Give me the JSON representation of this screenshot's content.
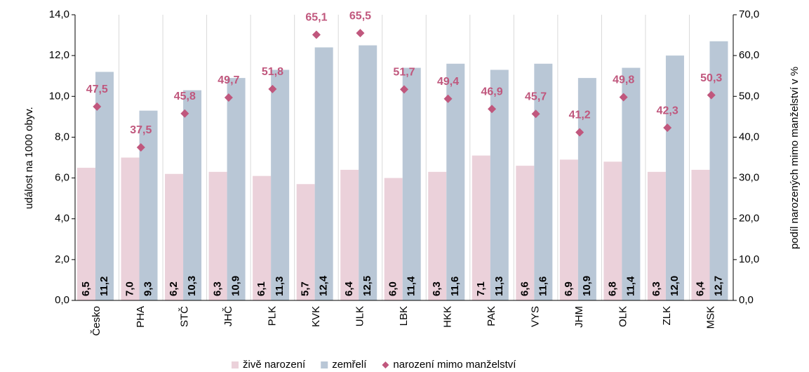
{
  "chart_data": {
    "type": "bar",
    "y_label": "událost na 1000 obyv.",
    "y2_label": "podíl narozených mimo manželství v %",
    "categories": [
      "Česko",
      "PHA",
      "STČ",
      "JHČ",
      "PLK",
      "KVK",
      "ULK",
      "LBK",
      "HKK",
      "PAK",
      "VYS",
      "JHM",
      "OLK",
      "ZLK",
      "MSK"
    ],
    "series": [
      {
        "name": "živě narození",
        "color": "#ebd1da",
        "values": [
          6.5,
          7.0,
          6.2,
          6.3,
          6.1,
          5.7,
          6.4,
          6.0,
          6.3,
          7.1,
          6.6,
          6.9,
          6.8,
          6.3,
          6.4
        ],
        "value_labels": [
          "6,5",
          "7,0",
          "6,2",
          "6,3",
          "6,1",
          "5,7",
          "6,4",
          "6,0",
          "6,3",
          "7,1",
          "6,6",
          "6,9",
          "6,8",
          "6,3",
          "6,4"
        ]
      },
      {
        "name": "zemřelí",
        "color": "#b9c7d6",
        "values": [
          11.2,
          9.3,
          10.3,
          10.9,
          11.3,
          12.4,
          12.5,
          11.4,
          11.6,
          11.3,
          11.6,
          10.9,
          11.4,
          12.0,
          12.7
        ],
        "value_labels": [
          "11,2",
          "9,3",
          "10,3",
          "10,9",
          "11,3",
          "12,4",
          "12,5",
          "11,4",
          "11,6",
          "11,3",
          "11,6",
          "10,9",
          "11,4",
          "12,0",
          "12,7"
        ]
      },
      {
        "name": "narození mimo manželství",
        "color": "#c0577d",
        "axis": "y2",
        "marker": "diamond",
        "values": [
          47.5,
          37.5,
          45.8,
          49.7,
          51.8,
          65.1,
          65.5,
          51.7,
          49.4,
          46.9,
          45.7,
          41.2,
          49.8,
          42.3,
          50.3
        ],
        "value_labels": [
          "47,5",
          "37,5",
          "45,8",
          "49,7",
          "51,8",
          "65,1",
          "65,5",
          "51,7",
          "49,4",
          "46,9",
          "45,7",
          "41,2",
          "49,8",
          "42,3",
          "50,3"
        ]
      }
    ],
    "ylim": [
      0,
      14
    ],
    "yticks": [
      {
        "value": 0,
        "label": "0,0"
      },
      {
        "value": 2,
        "label": "2,0"
      },
      {
        "value": 4,
        "label": "4,0"
      },
      {
        "value": 6,
        "label": "6,0"
      },
      {
        "value": 8,
        "label": "8,0"
      },
      {
        "value": 10,
        "label": "10,0"
      },
      {
        "value": 12,
        "label": "12,0"
      },
      {
        "value": 14,
        "label": "14,0"
      }
    ],
    "y2lim": [
      0,
      70
    ],
    "y2ticks": [
      {
        "value": 0,
        "label": "0,0"
      },
      {
        "value": 10,
        "label": "10,0"
      },
      {
        "value": 20,
        "label": "20,0"
      },
      {
        "value": 30,
        "label": "30,0"
      },
      {
        "value": 40,
        "label": "40,0"
      },
      {
        "value": 50,
        "label": "50,0"
      },
      {
        "value": 60,
        "label": "60,0"
      },
      {
        "value": 70,
        "label": "70,0"
      }
    ],
    "legend": "bottom"
  }
}
